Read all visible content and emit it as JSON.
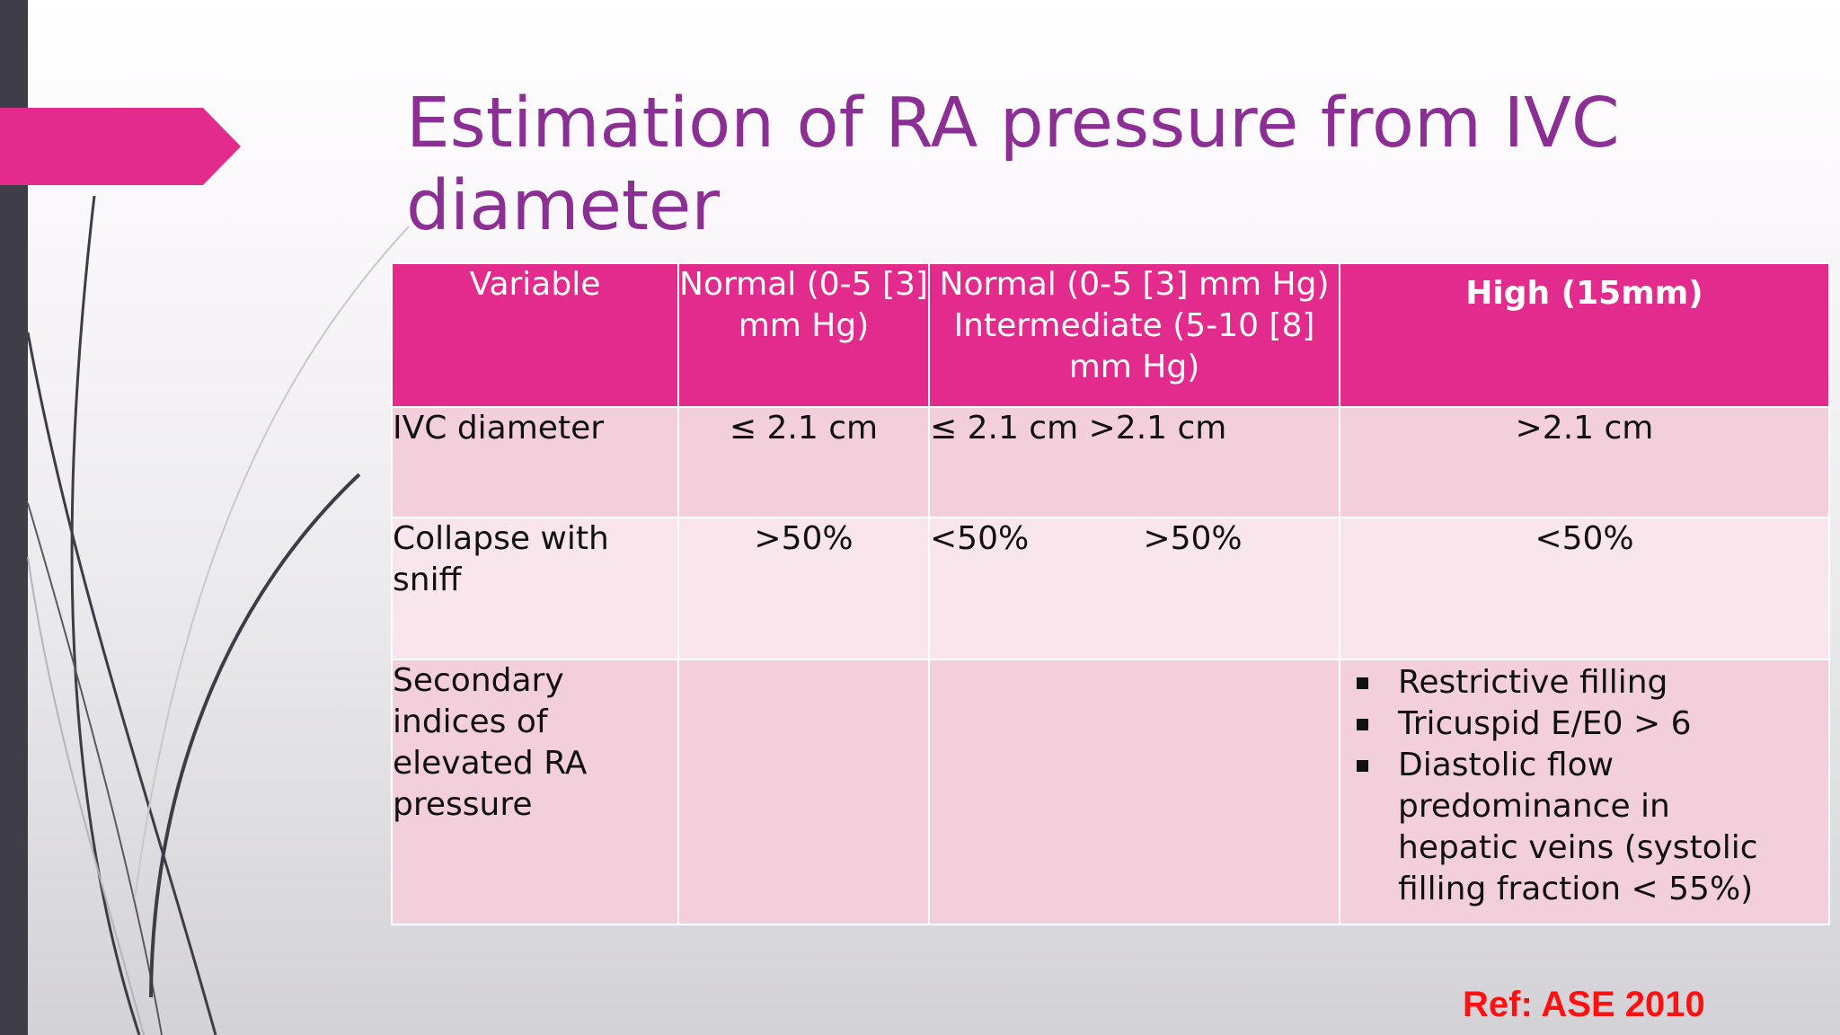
{
  "slide": {
    "title": "Estimation of RA pressure from IVC diameter",
    "colors": {
      "title": "#8c2f95",
      "header_bg": "#e22b8c",
      "row_dark": "#f3cfdc",
      "row_light": "#f9e5ec",
      "accent_bar": "#3f3e47",
      "reference": "#ff1111"
    }
  },
  "table": {
    "headers": [
      "Variable",
      "Normal (0-5 [3] mm Hg)",
      "Normal (0-5 [3] mm Hg) Intermediate (5-10 [8] mm Hg)",
      "High (15mm)"
    ],
    "rows": {
      "ivc": {
        "label": "IVC diameter",
        "normal": "≤ 2.1 cm",
        "intermediate_a": "≤ 2.1 cm",
        "intermediate_b": ">2.1 cm",
        "high": ">2.1 cm"
      },
      "collapse": {
        "label": "Collapse with sniff",
        "normal": ">50%",
        "intermediate_a": "<50%",
        "intermediate_b": ">50%",
        "high": "<50%"
      },
      "secondary": {
        "label": "Secondary indices of elevated RA pressure",
        "normal": "",
        "intermediate": "",
        "high_items": [
          "Restrictive filling",
          "Tricuspid E/E0 > 6",
          "Diastolic flow predominance in hepatic veins (systolic filling fraction < 55%)"
        ]
      }
    }
  },
  "reference": "Ref: ASE 2010"
}
